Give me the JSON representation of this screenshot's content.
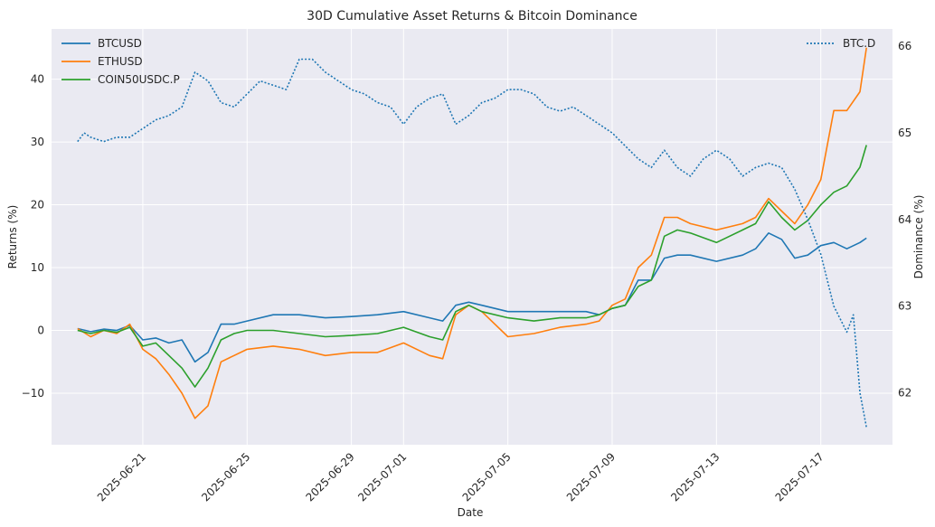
{
  "chart_data": {
    "type": "line",
    "title": "30D Cumulative Asset Returns & Bitcoin Dominance",
    "xlabel": "Date",
    "ylabel": "Returns (%)",
    "y2label": "Dominance (%)",
    "grid": true,
    "xlim": [
      "2025-06-17T12:00",
      "2025-07-19T18:00"
    ],
    "ylim": [
      -18.2,
      48
    ],
    "y2lim": [
      61.4,
      66.2
    ],
    "x_ticks": [
      "2025-06-21",
      "2025-06-25",
      "2025-06-29",
      "2025-07-01",
      "2025-07-05",
      "2025-07-09",
      "2025-07-13",
      "2025-07-17"
    ],
    "y_ticks": [
      -10,
      0,
      10,
      20,
      30,
      40
    ],
    "y_tick_labels": [
      "−10",
      "0",
      "10",
      "20",
      "30",
      "40"
    ],
    "y2_ticks": [
      62,
      63,
      64,
      65,
      66
    ],
    "y2_tick_labels": [
      "62",
      "63",
      "64",
      "65",
      "66"
    ],
    "legend_left": {
      "placement": "top-left"
    },
    "legend_right": {
      "placement": "top-right"
    },
    "series": [
      {
        "name": "BTCUSD",
        "axis": "left",
        "color": "#1f77b4",
        "style": "solid",
        "x": [
          "2025-06-18T12:00",
          "2025-06-19T00:00",
          "2025-06-19T12:00",
          "2025-06-20T00:00",
          "2025-06-20T12:00",
          "2025-06-21T00:00",
          "2025-06-21T12:00",
          "2025-06-22T00:00",
          "2025-06-22T12:00",
          "2025-06-23T00:00",
          "2025-06-23T12:00",
          "2025-06-24T00:00",
          "2025-06-24T12:00",
          "2025-06-25T00:00",
          "2025-06-26T00:00",
          "2025-06-27T00:00",
          "2025-06-28T00:00",
          "2025-06-29T00:00",
          "2025-06-30T00:00",
          "2025-07-01T00:00",
          "2025-07-02T00:00",
          "2025-07-02T12:00",
          "2025-07-03T00:00",
          "2025-07-03T12:00",
          "2025-07-04T00:00",
          "2025-07-05T00:00",
          "2025-07-06T00:00",
          "2025-07-07T00:00",
          "2025-07-08T00:00",
          "2025-07-08T12:00",
          "2025-07-09T00:00",
          "2025-07-09T12:00",
          "2025-07-10T00:00",
          "2025-07-10T12:00",
          "2025-07-11T00:00",
          "2025-07-11T12:00",
          "2025-07-12T00:00",
          "2025-07-13T00:00",
          "2025-07-14T00:00",
          "2025-07-14T12:00",
          "2025-07-15T00:00",
          "2025-07-15T12:00",
          "2025-07-16T00:00",
          "2025-07-16T12:00",
          "2025-07-17T00:00",
          "2025-07-17T12:00",
          "2025-07-18T00:00",
          "2025-07-18T12:00",
          "2025-07-18T18:00"
        ],
        "y": [
          0.3,
          -0.2,
          0.2,
          0.0,
          0.8,
          -1.5,
          -1.2,
          -2.0,
          -1.5,
          -5.0,
          -3.5,
          1.0,
          1.0,
          1.5,
          2.5,
          2.5,
          2.0,
          2.2,
          2.5,
          3.0,
          2.0,
          1.5,
          4.0,
          4.5,
          4.0,
          3.0,
          3.0,
          3.0,
          3.0,
          2.5,
          3.5,
          4.0,
          8.0,
          8.0,
          11.5,
          12.0,
          12.0,
          11.0,
          12.0,
          13.0,
          15.5,
          14.5,
          11.5,
          12.0,
          13.5,
          14.0,
          13.0,
          14.0,
          14.7
        ]
      },
      {
        "name": "ETHUSD",
        "axis": "left",
        "color": "#ff7f0e",
        "style": "solid",
        "x": [
          "2025-06-18T12:00",
          "2025-06-19T00:00",
          "2025-06-19T12:00",
          "2025-06-20T00:00",
          "2025-06-20T12:00",
          "2025-06-21T00:00",
          "2025-06-21T12:00",
          "2025-06-22T00:00",
          "2025-06-22T12:00",
          "2025-06-23T00:00",
          "2025-06-23T12:00",
          "2025-06-24T00:00",
          "2025-06-24T12:00",
          "2025-06-25T00:00",
          "2025-06-26T00:00",
          "2025-06-27T00:00",
          "2025-06-28T00:00",
          "2025-06-29T00:00",
          "2025-06-30T00:00",
          "2025-07-01T00:00",
          "2025-07-02T00:00",
          "2025-07-02T12:00",
          "2025-07-03T00:00",
          "2025-07-03T12:00",
          "2025-07-04T00:00",
          "2025-07-05T00:00",
          "2025-07-06T00:00",
          "2025-07-07T00:00",
          "2025-07-08T00:00",
          "2025-07-08T12:00",
          "2025-07-09T00:00",
          "2025-07-09T12:00",
          "2025-07-10T00:00",
          "2025-07-10T12:00",
          "2025-07-11T00:00",
          "2025-07-11T12:00",
          "2025-07-12T00:00",
          "2025-07-13T00:00",
          "2025-07-14T00:00",
          "2025-07-14T12:00",
          "2025-07-15T00:00",
          "2025-07-15T12:00",
          "2025-07-16T00:00",
          "2025-07-16T12:00",
          "2025-07-17T00:00",
          "2025-07-17T12:00",
          "2025-07-18T00:00",
          "2025-07-18T12:00",
          "2025-07-18T18:00"
        ],
        "y": [
          0.3,
          -1.0,
          0.0,
          -0.5,
          1.0,
          -3.0,
          -4.5,
          -7.0,
          -10.0,
          -14.0,
          -12.0,
          -5.0,
          -4.0,
          -3.0,
          -2.5,
          -3.0,
          -4.0,
          -3.5,
          -3.5,
          -2.0,
          -4.0,
          -4.5,
          2.5,
          4.0,
          3.0,
          -1.0,
          -0.5,
          0.5,
          1.0,
          1.5,
          4.0,
          5.0,
          10.0,
          12.0,
          18.0,
          18.0,
          17.0,
          16.0,
          17.0,
          18.0,
          21.0,
          19.0,
          17.0,
          20.0,
          24.0,
          35.0,
          35.0,
          38.0,
          45.0
        ]
      },
      {
        "name": "COIN50USDC.P",
        "axis": "left",
        "color": "#2ca02c",
        "style": "solid",
        "x": [
          "2025-06-18T12:00",
          "2025-06-19T00:00",
          "2025-06-19T12:00",
          "2025-06-20T00:00",
          "2025-06-20T12:00",
          "2025-06-21T00:00",
          "2025-06-21T12:00",
          "2025-06-22T00:00",
          "2025-06-22T12:00",
          "2025-06-23T00:00",
          "2025-06-23T12:00",
          "2025-06-24T00:00",
          "2025-06-24T12:00",
          "2025-06-25T00:00",
          "2025-06-26T00:00",
          "2025-06-27T00:00",
          "2025-06-28T00:00",
          "2025-06-29T00:00",
          "2025-06-30T00:00",
          "2025-07-01T00:00",
          "2025-07-02T00:00",
          "2025-07-02T12:00",
          "2025-07-03T00:00",
          "2025-07-03T12:00",
          "2025-07-04T00:00",
          "2025-07-05T00:00",
          "2025-07-06T00:00",
          "2025-07-07T00:00",
          "2025-07-08T00:00",
          "2025-07-08T12:00",
          "2025-07-09T00:00",
          "2025-07-09T12:00",
          "2025-07-10T00:00",
          "2025-07-10T12:00",
          "2025-07-11T00:00",
          "2025-07-11T12:00",
          "2025-07-12T00:00",
          "2025-07-13T00:00",
          "2025-07-14T00:00",
          "2025-07-14T12:00",
          "2025-07-15T00:00",
          "2025-07-15T12:00",
          "2025-07-16T00:00",
          "2025-07-16T12:00",
          "2025-07-17T00:00",
          "2025-07-17T12:00",
          "2025-07-18T00:00",
          "2025-07-18T12:00",
          "2025-07-18T18:00"
        ],
        "y": [
          0.0,
          -0.5,
          0.0,
          -0.3,
          0.5,
          -2.5,
          -2.0,
          -4.0,
          -6.0,
          -9.0,
          -6.0,
          -1.5,
          -0.5,
          0.0,
          0.0,
          -0.5,
          -1.0,
          -0.8,
          -0.5,
          0.5,
          -1.0,
          -1.5,
          3.0,
          4.0,
          3.0,
          2.0,
          1.5,
          2.0,
          2.0,
          2.5,
          3.5,
          4.0,
          7.0,
          8.0,
          15.0,
          16.0,
          15.5,
          14.0,
          16.0,
          17.0,
          20.5,
          18.0,
          16.0,
          17.5,
          20.0,
          22.0,
          23.0,
          26.0,
          29.5
        ]
      },
      {
        "name": "BTC.D",
        "axis": "right",
        "color": "#1f77b4",
        "style": "dotted",
        "x": [
          "2025-06-18T12:00",
          "2025-06-18T18:00",
          "2025-06-19T00:00",
          "2025-06-19T12:00",
          "2025-06-20T00:00",
          "2025-06-20T12:00",
          "2025-06-21T00:00",
          "2025-06-21T12:00",
          "2025-06-22T00:00",
          "2025-06-22T12:00",
          "2025-06-23T00:00",
          "2025-06-23T12:00",
          "2025-06-24T00:00",
          "2025-06-24T12:00",
          "2025-06-25T00:00",
          "2025-06-25T12:00",
          "2025-06-26T00:00",
          "2025-06-26T12:00",
          "2025-06-27T00:00",
          "2025-06-27T12:00",
          "2025-06-28T00:00",
          "2025-06-28T12:00",
          "2025-06-29T00:00",
          "2025-06-29T12:00",
          "2025-06-30T00:00",
          "2025-06-30T12:00",
          "2025-07-01T00:00",
          "2025-07-01T12:00",
          "2025-07-02T00:00",
          "2025-07-02T12:00",
          "2025-07-03T00:00",
          "2025-07-03T12:00",
          "2025-07-04T00:00",
          "2025-07-04T12:00",
          "2025-07-05T00:00",
          "2025-07-05T12:00",
          "2025-07-06T00:00",
          "2025-07-06T12:00",
          "2025-07-07T00:00",
          "2025-07-07T12:00",
          "2025-07-08T00:00",
          "2025-07-08T12:00",
          "2025-07-09T00:00",
          "2025-07-09T12:00",
          "2025-07-10T00:00",
          "2025-07-10T12:00",
          "2025-07-11T00:00",
          "2025-07-11T12:00",
          "2025-07-12T00:00",
          "2025-07-12T12:00",
          "2025-07-13T00:00",
          "2025-07-13T12:00",
          "2025-07-14T00:00",
          "2025-07-14T12:00",
          "2025-07-15T00:00",
          "2025-07-15T12:00",
          "2025-07-16T00:00",
          "2025-07-16T12:00",
          "2025-07-17T00:00",
          "2025-07-17T12:00",
          "2025-07-18T00:00",
          "2025-07-18T06:00",
          "2025-07-18T12:00",
          "2025-07-18T18:00"
        ],
        "y": [
          64.9,
          65.0,
          64.95,
          64.9,
          64.95,
          64.95,
          65.05,
          65.15,
          65.2,
          65.3,
          65.7,
          65.6,
          65.35,
          65.3,
          65.45,
          65.6,
          65.55,
          65.5,
          65.85,
          65.85,
          65.7,
          65.6,
          65.5,
          65.45,
          65.35,
          65.3,
          65.1,
          65.3,
          65.4,
          65.45,
          65.1,
          65.2,
          65.35,
          65.4,
          65.5,
          65.5,
          65.45,
          65.3,
          65.25,
          65.3,
          65.2,
          65.1,
          65.0,
          64.85,
          64.7,
          64.6,
          64.8,
          64.6,
          64.5,
          64.7,
          64.8,
          64.7,
          64.5,
          64.6,
          64.65,
          64.6,
          64.35,
          64.0,
          63.6,
          63.0,
          62.7,
          62.9,
          62.0,
          61.6
        ]
      }
    ]
  }
}
